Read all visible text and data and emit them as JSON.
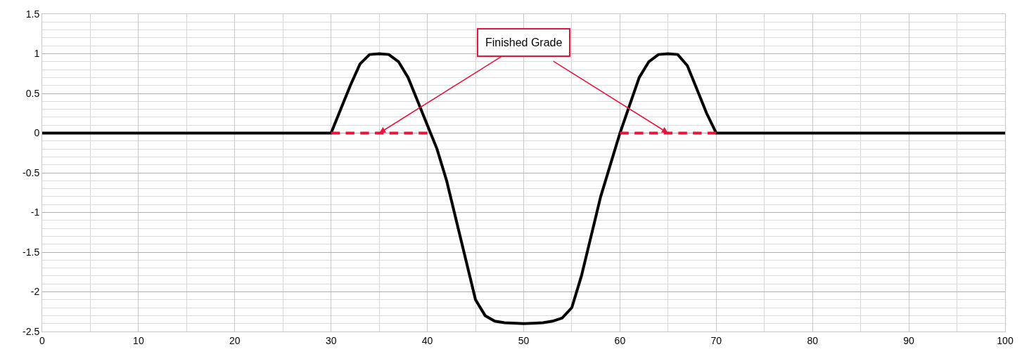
{
  "chart_data": {
    "type": "line",
    "xlim": [
      0,
      100
    ],
    "ylim": [
      -2.5,
      1.5
    ],
    "xticks": [
      0,
      10,
      20,
      30,
      40,
      50,
      60,
      70,
      80,
      90,
      100
    ],
    "yticks": [
      -2.5,
      -2,
      -1.5,
      -1,
      -0.5,
      0,
      0.5,
      1,
      1.5
    ],
    "grid": true,
    "legend": false,
    "marker": "none",
    "series": [
      {
        "color": "#000000",
        "line_style": "solid",
        "x": [
          0,
          30,
          31,
          32,
          33,
          34,
          35,
          36,
          37,
          38,
          39,
          40,
          41,
          42,
          43,
          44,
          45,
          46,
          47,
          48,
          50,
          52,
          53,
          54,
          55,
          56,
          57,
          58,
          59,
          60,
          61,
          62,
          63,
          64,
          65,
          66,
          67,
          68,
          69,
          70,
          100
        ],
        "values": [
          0,
          0,
          0.3,
          0.6,
          0.87,
          0.99,
          1,
          0.99,
          0.9,
          0.7,
          0.4,
          0.1,
          -0.2,
          -0.6,
          -1.1,
          -1.6,
          -2.1,
          -2.3,
          -2.37,
          -2.39,
          -2.4,
          -2.39,
          -2.37,
          -2.33,
          -2.2,
          -1.8,
          -1.3,
          -0.8,
          -0.4,
          0,
          0.35,
          0.7,
          0.9,
          0.99,
          1,
          0.99,
          0.85,
          0.55,
          0.25,
          0,
          0
        ]
      },
      {
        "name": "Finished Grade",
        "color": "#e8143c",
        "line_style": "dashed",
        "x": [
          30,
          40,
          50,
          60,
          70
        ],
        "values": [
          0,
          0,
          null,
          0,
          0
        ]
      }
    ]
  }
}
